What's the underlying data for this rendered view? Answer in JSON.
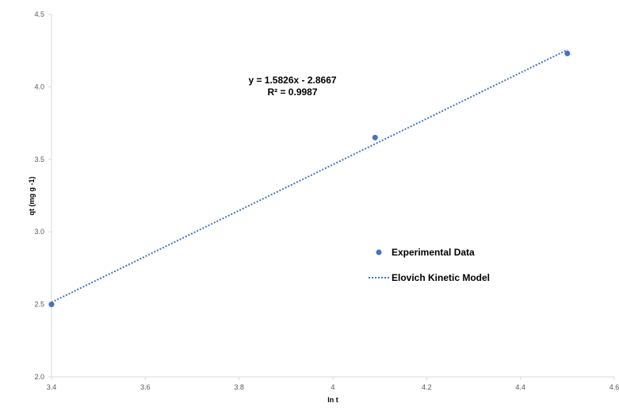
{
  "chart_data": {
    "type": "scatter",
    "xlabel": "ln t",
    "ylabel": "qt (mg g -1)",
    "xlim": [
      3.4,
      4.6
    ],
    "ylim": [
      2.0,
      4.5
    ],
    "x_ticks": [
      "3.4",
      "3.6",
      "3.8",
      "4",
      "4.2",
      "4.4",
      "4.6"
    ],
    "y_ticks": [
      "2.0",
      "2.5",
      "3.0",
      "3.5",
      "4.0",
      "4.5"
    ],
    "grid": false,
    "legend_position": "right",
    "series": [
      {
        "name": "Experimental Data",
        "kind": "scatter",
        "color": "#4472C4",
        "points": [
          {
            "x": 3.4,
            "y": 2.5
          },
          {
            "x": 4.09,
            "y": 3.65
          },
          {
            "x": 4.5,
            "y": 4.23
          }
        ]
      },
      {
        "name": "Elovich Kinetic Model",
        "kind": "line",
        "style": "dotted",
        "color": "#4472C4",
        "slope": 1.5826,
        "intercept": -2.8667,
        "x_range": [
          3.4,
          4.5
        ]
      }
    ],
    "annotations": {
      "equation": "y = 1.5826x - 2.8667",
      "r_squared": "R² = 0.9987"
    },
    "colors": {
      "axis": "#D9D9D9",
      "marker": "#4472C4",
      "text": "#000000",
      "tick_text": "#595959",
      "background": "#FFFFFF"
    }
  }
}
